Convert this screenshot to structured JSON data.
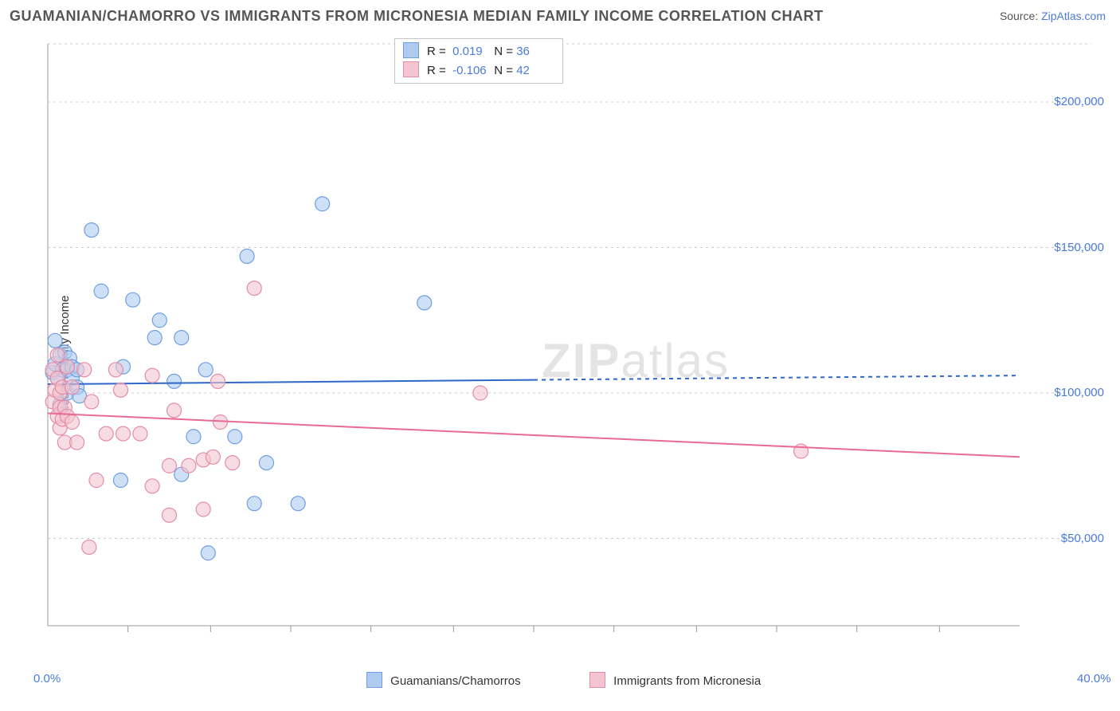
{
  "title": "GUAMANIAN/CHAMORRO VS IMMIGRANTS FROM MICRONESIA MEDIAN FAMILY INCOME CORRELATION CHART",
  "source_label": "Source: ",
  "source_link_text": "ZipAtlas.com",
  "y_axis_label": "Median Family Income",
  "watermark": {
    "head": "ZIP",
    "tail": "atlas"
  },
  "plot": {
    "type": "scatter",
    "background_color": "#ffffff",
    "border_color": "#999999",
    "grid_color": "#cccccc",
    "grid_dash": "3 4",
    "x": {
      "min": 0.0,
      "max": 40.0,
      "ticks_major_labeled": [
        0.0,
        40.0
      ],
      "ticks_minor": [
        3.3,
        6.7,
        10,
        13.3,
        16.7,
        20,
        23.3,
        26.7,
        30,
        33.3,
        36.7
      ],
      "label_suffix": "%",
      "label_color": "#4a7bd8",
      "label_fontsize": 15
    },
    "y": {
      "min": 20000,
      "max": 220000,
      "ticks": [
        50000,
        100000,
        150000,
        200000
      ],
      "label_prefix": "$",
      "label_color": "#4a7bd8",
      "label_fontsize": 15
    },
    "series": [
      {
        "id": "guamanian",
        "legend_label": "Guamanians/Chamorros",
        "color_fill": "#aecbef",
        "color_stroke": "#6f9fe0",
        "marker_radius": 9,
        "marker_opacity": 0.6,
        "R": 0.019,
        "N": 36,
        "trend": {
          "y_start": 103000,
          "y_end": 106000,
          "solid_until_x": 20.0,
          "color": "#2f67c9",
          "width": 2,
          "dash": "5 5"
        },
        "points": [
          [
            0.2,
            107000
          ],
          [
            0.3,
            118000
          ],
          [
            0.3,
            110000
          ],
          [
            0.4,
            105000
          ],
          [
            0.5,
            96000
          ],
          [
            0.5,
            113000
          ],
          [
            0.6,
            108000
          ],
          [
            0.7,
            114000
          ],
          [
            0.8,
            108000
          ],
          [
            0.8,
            100000
          ],
          [
            0.9,
            112000
          ],
          [
            1.0,
            109000
          ],
          [
            1.0,
            105000
          ],
          [
            1.2,
            108000
          ],
          [
            1.2,
            102000
          ],
          [
            1.3,
            99000
          ],
          [
            1.8,
            156000
          ],
          [
            2.2,
            135000
          ],
          [
            3.0,
            70000
          ],
          [
            3.1,
            109000
          ],
          [
            3.5,
            132000
          ],
          [
            4.4,
            119000
          ],
          [
            4.6,
            125000
          ],
          [
            5.2,
            104000
          ],
          [
            5.5,
            119000
          ],
          [
            5.5,
            72000
          ],
          [
            6.0,
            85000
          ],
          [
            6.5,
            108000
          ],
          [
            6.6,
            45000
          ],
          [
            7.7,
            85000
          ],
          [
            8.2,
            147000
          ],
          [
            8.5,
            62000
          ],
          [
            9.0,
            76000
          ],
          [
            10.3,
            62000
          ],
          [
            11.3,
            165000
          ],
          [
            15.5,
            131000
          ]
        ]
      },
      {
        "id": "micronesia",
        "legend_label": "Immigrants from Micronesia",
        "color_fill": "#f4c4d1",
        "color_stroke": "#e48ca8",
        "marker_radius": 9,
        "marker_opacity": 0.6,
        "R": -0.106,
        "N": 42,
        "trend": {
          "y_start": 93000,
          "y_end": 78000,
          "solid_until_x": 40.0,
          "color": "#e86a95",
          "width": 2
        },
        "points": [
          [
            0.2,
            97000
          ],
          [
            0.2,
            108000
          ],
          [
            0.3,
            101000
          ],
          [
            0.4,
            92000
          ],
          [
            0.4,
            105000
          ],
          [
            0.4,
            113000
          ],
          [
            0.5,
            88000
          ],
          [
            0.5,
            95000
          ],
          [
            0.5,
            100000
          ],
          [
            0.6,
            102000
          ],
          [
            0.6,
            91000
          ],
          [
            0.7,
            95000
          ],
          [
            0.7,
            83000
          ],
          [
            0.8,
            92000
          ],
          [
            0.8,
            109000
          ],
          [
            1.0,
            102000
          ],
          [
            1.0,
            90000
          ],
          [
            1.2,
            83000
          ],
          [
            1.5,
            108000
          ],
          [
            1.7,
            47000
          ],
          [
            1.8,
            97000
          ],
          [
            2.0,
            70000
          ],
          [
            2.4,
            86000
          ],
          [
            2.8,
            108000
          ],
          [
            3.0,
            101000
          ],
          [
            3.1,
            86000
          ],
          [
            3.8,
            86000
          ],
          [
            4.3,
            106000
          ],
          [
            4.3,
            68000
          ],
          [
            5.0,
            75000
          ],
          [
            5.0,
            58000
          ],
          [
            5.2,
            94000
          ],
          [
            5.8,
            75000
          ],
          [
            6.4,
            77000
          ],
          [
            6.4,
            60000
          ],
          [
            6.8,
            78000
          ],
          [
            7.0,
            104000
          ],
          [
            7.1,
            90000
          ],
          [
            7.6,
            76000
          ],
          [
            8.5,
            136000
          ],
          [
            17.8,
            100000
          ],
          [
            31.0,
            80000
          ]
        ]
      }
    ]
  },
  "legend_box": {
    "border_color": "#c5c5c5"
  }
}
